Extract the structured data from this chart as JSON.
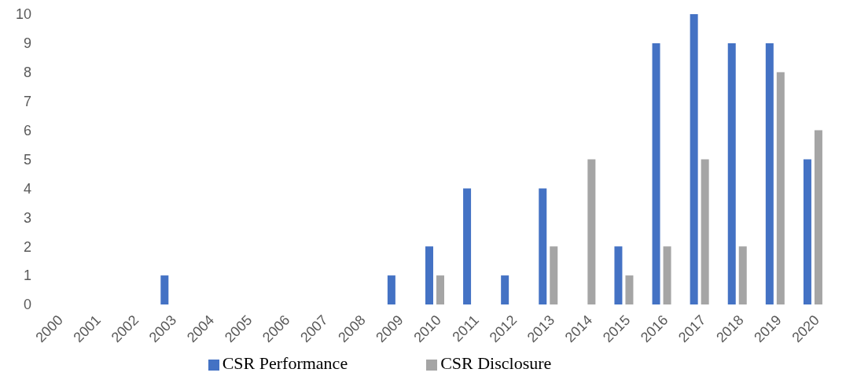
{
  "chart_data": {
    "type": "bar",
    "categories": [
      "2000",
      "2001",
      "2002",
      "2003",
      "2004",
      "2005",
      "2006",
      "2007",
      "2008",
      "2009",
      "2010",
      "2011",
      "2012",
      "2013",
      "2014",
      "2015",
      "2016",
      "2017",
      "2018",
      "2019",
      "2020"
    ],
    "series": [
      {
        "name": "CSR Performance",
        "color": "#4472c4",
        "values": [
          0,
          0,
          0,
          1,
          0,
          0,
          0,
          0,
          0,
          1,
          2,
          4,
          1,
          4,
          0,
          2,
          9,
          10,
          9,
          9,
          5
        ]
      },
      {
        "name": "CSR Disclosure",
        "color": "#a5a5a5",
        "values": [
          0,
          0,
          0,
          0,
          0,
          0,
          0,
          0,
          0,
          0,
          1,
          0,
          0,
          2,
          5,
          1,
          2,
          5,
          2,
          8,
          6
        ]
      }
    ],
    "ylim": [
      0,
      10
    ],
    "yticks": [
      0,
      1,
      2,
      3,
      4,
      5,
      6,
      7,
      8,
      9,
      10
    ],
    "grid": false,
    "legend": "bottom"
  }
}
